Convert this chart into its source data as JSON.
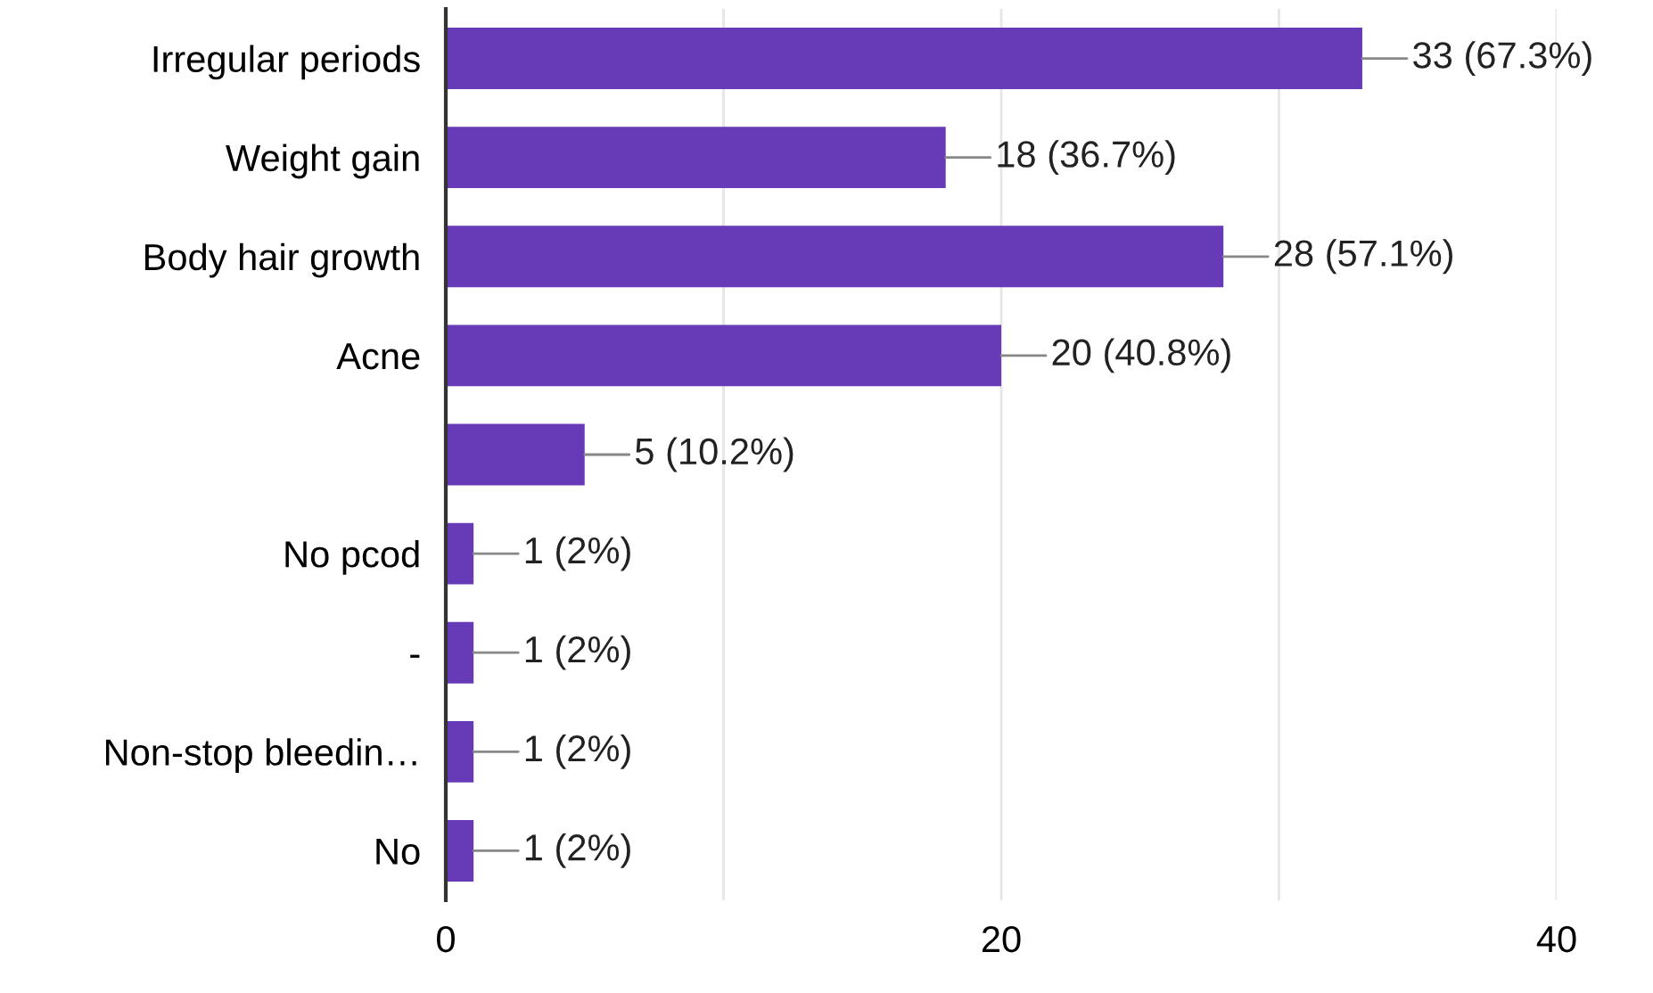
{
  "chart_data": {
    "type": "bar",
    "orientation": "horizontal",
    "categories": [
      "Irregular periods",
      "Weight gain",
      "Body hair growth",
      "Acne",
      null,
      "No pcod",
      "-",
      "Non-stop bleedin…",
      "No"
    ],
    "values": [
      33,
      18,
      28,
      20,
      5,
      1,
      1,
      1,
      1
    ],
    "value_labels": [
      "33 (67.3%)",
      "18 (36.7%)",
      "28 (57.1%)",
      "20 (40.8%)",
      "5 (10.2%)",
      "1 (2%)",
      "1 (2%)",
      "1 (2%)",
      "1 (2%)"
    ],
    "color": "#673ab7",
    "xlim": [
      0,
      40
    ],
    "xticks": [
      0,
      {
        "value": 10,
        "label": null
      },
      20,
      {
        "value": 30,
        "label": null
      },
      40
    ],
    "grid": "x",
    "legend": false
  }
}
